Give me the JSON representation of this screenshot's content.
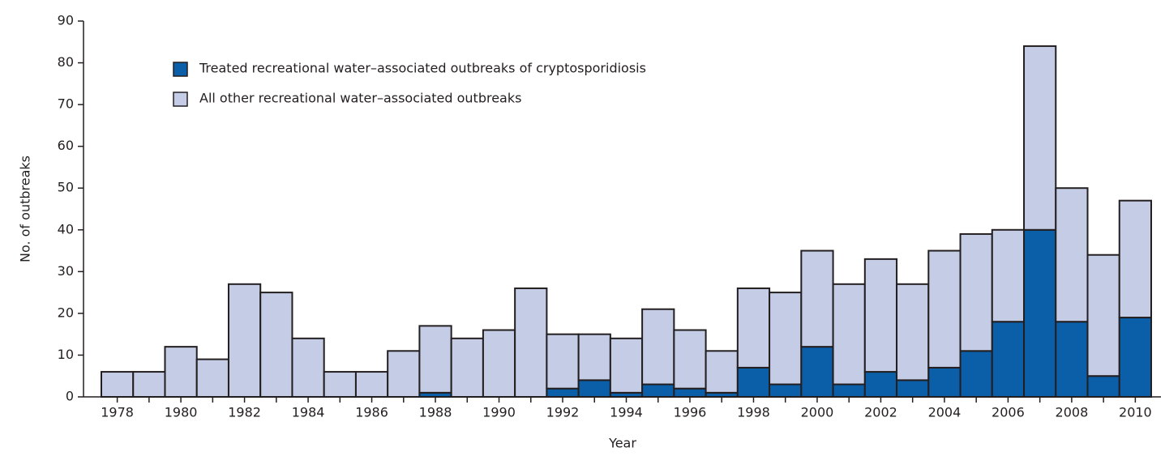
{
  "chart_data": {
    "type": "stacked_bar",
    "x_label": "Year",
    "y_label": "No. of outbreaks",
    "categories": [
      "1978",
      null,
      "1980",
      null,
      "1982",
      null,
      "1984",
      null,
      "1986",
      null,
      "1988",
      null,
      "1990",
      null,
      "1992",
      null,
      "1994",
      null,
      "1996",
      null,
      "1998",
      null,
      "2000",
      null,
      "2002",
      null,
      "2004",
      null,
      "2006",
      null,
      "2008",
      null,
      "2010"
    ],
    "series": [
      {
        "name": "Treated recreational water–associated outbreaks of cryptosporidiosis",
        "color": "#0b5ea8",
        "values": [
          0,
          0,
          0,
          0,
          0,
          0,
          0,
          0,
          0,
          0,
          1,
          0,
          0,
          0,
          2,
          4,
          1,
          3,
          2,
          1,
          7,
          3,
          12,
          3,
          6,
          4,
          7,
          11,
          18,
          40,
          18,
          5,
          19
        ]
      },
      {
        "name": "All other recreational water–associated outbreaks",
        "color": "#c5cde6",
        "values": [
          6,
          6,
          12,
          9,
          27,
          25,
          14,
          6,
          6,
          11,
          16,
          14,
          16,
          26,
          13,
          11,
          13,
          18,
          14,
          10,
          19,
          22,
          23,
          24,
          27,
          23,
          28,
          28,
          22,
          44,
          32,
          29,
          28
        ]
      }
    ],
    "ylim": [
      0,
      90
    ],
    "yticks": [
      0,
      10,
      20,
      30,
      40,
      50,
      60,
      70,
      80,
      90
    ]
  }
}
